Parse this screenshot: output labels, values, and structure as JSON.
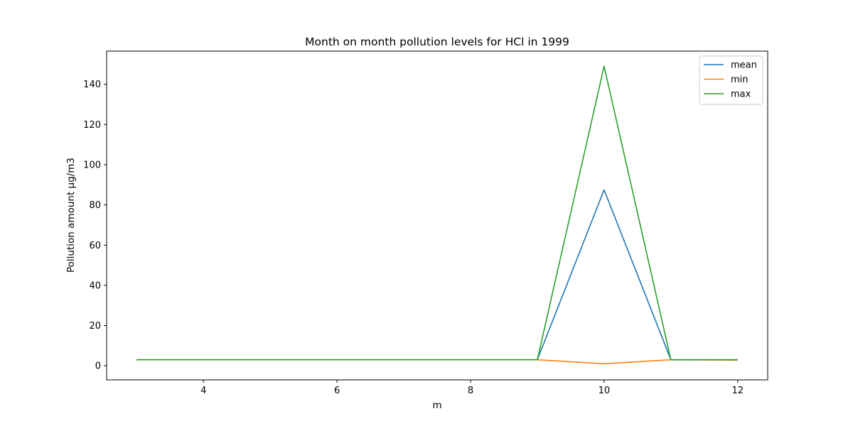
{
  "chart_data": {
    "type": "line",
    "title": "Month on month pollution levels for HCl in 1999",
    "xlabel": "m",
    "ylabel": "Pollution amount µg/m3",
    "xlim": [
      2.55,
      12.45
    ],
    "ylim": [
      -7.0,
      156.5
    ],
    "xticks": [
      4,
      6,
      8,
      10,
      12
    ],
    "yticks": [
      0,
      20,
      40,
      60,
      80,
      100,
      120,
      140
    ],
    "grid": false,
    "legend_position": "upper right",
    "x": [
      3,
      4,
      5,
      6,
      7,
      8,
      9,
      10,
      11,
      12
    ],
    "series": [
      {
        "name": "mean",
        "color": "#1f77b4",
        "values": [
          3,
          3,
          3,
          3,
          3,
          3,
          3,
          87.5,
          3,
          3
        ]
      },
      {
        "name": "min",
        "color": "#ff7f0e",
        "values": [
          3,
          3,
          3,
          3,
          3,
          3,
          3,
          1,
          3,
          2.8
        ]
      },
      {
        "name": "max",
        "color": "#2ca02c",
        "values": [
          3,
          3,
          3,
          3,
          3,
          3,
          3,
          149,
          3,
          3
        ]
      }
    ]
  }
}
